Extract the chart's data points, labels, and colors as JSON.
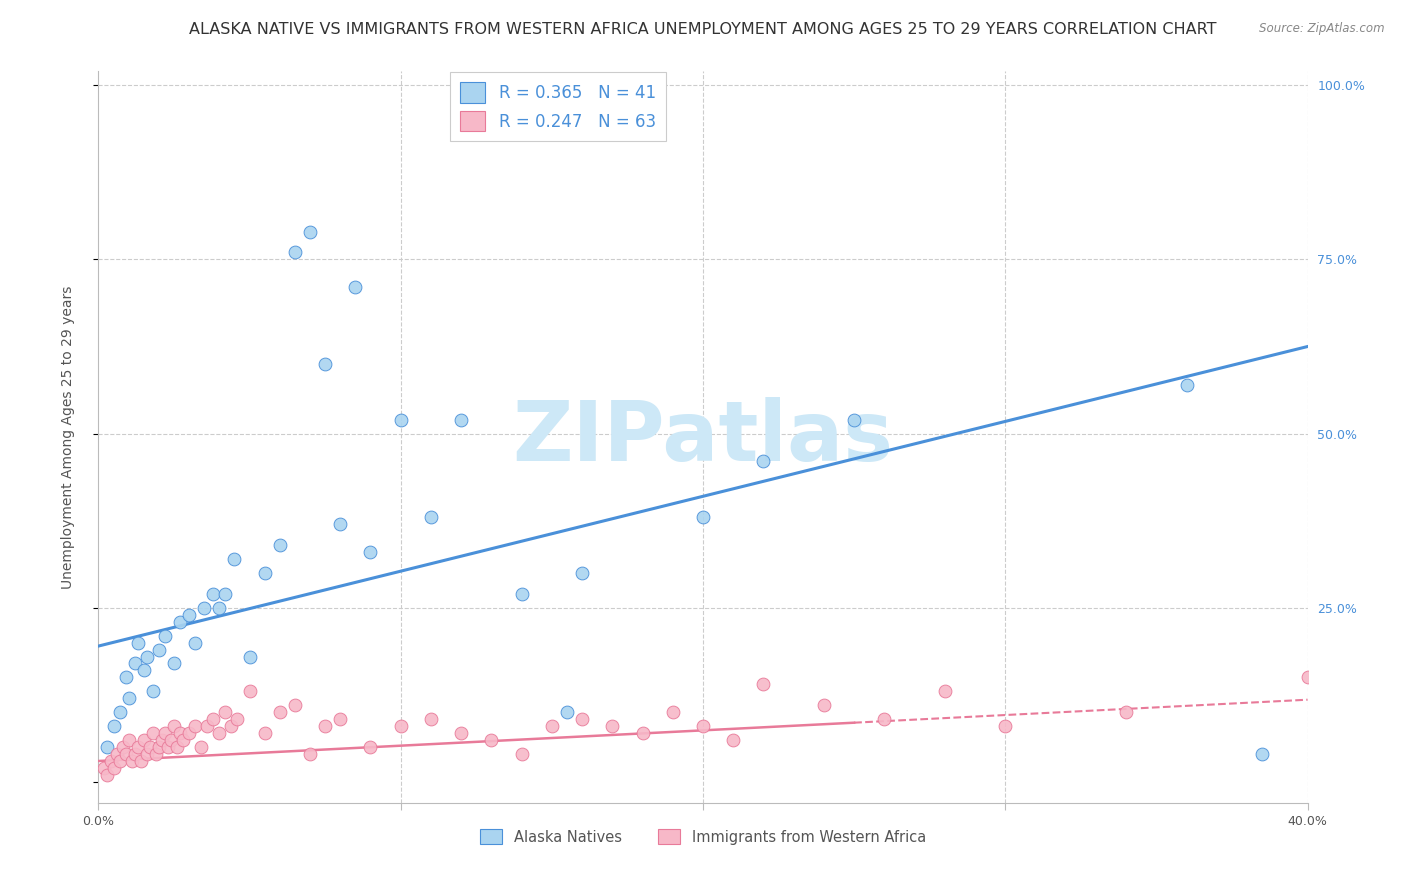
{
  "title": "ALASKA NATIVE VS IMMIGRANTS FROM WESTERN AFRICA UNEMPLOYMENT AMONG AGES 25 TO 29 YEARS CORRELATION CHART",
  "source": "Source: ZipAtlas.com",
  "ylabel": "Unemployment Among Ages 25 to 29 years",
  "xlim": [
    0.0,
    0.4
  ],
  "ylim": [
    -0.02,
    1.0
  ],
  "alaska_R": 0.365,
  "alaska_N": 41,
  "western_africa_R": 0.247,
  "western_africa_N": 63,
  "alaska_color": "#aad4f0",
  "western_africa_color": "#f7b8c8",
  "alaska_line_color": "#4a90d9",
  "western_africa_line_color": "#e87a99",
  "legend_label_1": "Alaska Natives",
  "legend_label_2": "Immigrants from Western Africa",
  "alaska_scatter_x": [
    0.003,
    0.005,
    0.007,
    0.009,
    0.01,
    0.012,
    0.013,
    0.015,
    0.016,
    0.018,
    0.02,
    0.022,
    0.025,
    0.027,
    0.03,
    0.032,
    0.035,
    0.038,
    0.04,
    0.042,
    0.045,
    0.05,
    0.055,
    0.06,
    0.065,
    0.07,
    0.075,
    0.08,
    0.085,
    0.09,
    0.1,
    0.11,
    0.12,
    0.14,
    0.155,
    0.16,
    0.2,
    0.22,
    0.25,
    0.36,
    0.385
  ],
  "alaska_scatter_y": [
    0.05,
    0.08,
    0.1,
    0.15,
    0.12,
    0.17,
    0.2,
    0.16,
    0.18,
    0.13,
    0.19,
    0.21,
    0.17,
    0.23,
    0.24,
    0.2,
    0.25,
    0.27,
    0.25,
    0.27,
    0.32,
    0.18,
    0.3,
    0.34,
    0.76,
    0.79,
    0.6,
    0.37,
    0.71,
    0.33,
    0.52,
    0.38,
    0.52,
    0.27,
    0.1,
    0.3,
    0.38,
    0.46,
    0.52,
    0.57,
    0.04
  ],
  "western_africa_scatter_x": [
    0.002,
    0.003,
    0.004,
    0.005,
    0.006,
    0.007,
    0.008,
    0.009,
    0.01,
    0.011,
    0.012,
    0.013,
    0.014,
    0.015,
    0.016,
    0.017,
    0.018,
    0.019,
    0.02,
    0.021,
    0.022,
    0.023,
    0.024,
    0.025,
    0.026,
    0.027,
    0.028,
    0.03,
    0.032,
    0.034,
    0.036,
    0.038,
    0.04,
    0.042,
    0.044,
    0.046,
    0.05,
    0.055,
    0.06,
    0.065,
    0.07,
    0.075,
    0.08,
    0.09,
    0.1,
    0.11,
    0.12,
    0.13,
    0.14,
    0.15,
    0.16,
    0.17,
    0.18,
    0.19,
    0.2,
    0.21,
    0.22,
    0.24,
    0.26,
    0.28,
    0.3,
    0.34,
    0.4
  ],
  "western_africa_scatter_y": [
    0.02,
    0.01,
    0.03,
    0.02,
    0.04,
    0.03,
    0.05,
    0.04,
    0.06,
    0.03,
    0.04,
    0.05,
    0.03,
    0.06,
    0.04,
    0.05,
    0.07,
    0.04,
    0.05,
    0.06,
    0.07,
    0.05,
    0.06,
    0.08,
    0.05,
    0.07,
    0.06,
    0.07,
    0.08,
    0.05,
    0.08,
    0.09,
    0.07,
    0.1,
    0.08,
    0.09,
    0.13,
    0.07,
    0.1,
    0.11,
    0.04,
    0.08,
    0.09,
    0.05,
    0.08,
    0.09,
    0.07,
    0.06,
    0.04,
    0.08,
    0.09,
    0.08,
    0.07,
    0.1,
    0.08,
    0.06,
    0.14,
    0.11,
    0.09,
    0.13,
    0.08,
    0.1,
    0.15
  ],
  "background_color": "#ffffff",
  "grid_color": "#cccccc",
  "title_fontsize": 11.5,
  "axis_label_fontsize": 10,
  "tick_fontsize": 9,
  "watermark_text": "ZIPatlas",
  "watermark_color": "#cde8f7",
  "watermark_fontsize": 60,
  "alaska_line_intercept": 0.195,
  "alaska_line_slope": 1.075,
  "wa_line_intercept": 0.03,
  "wa_line_slope": 0.22
}
